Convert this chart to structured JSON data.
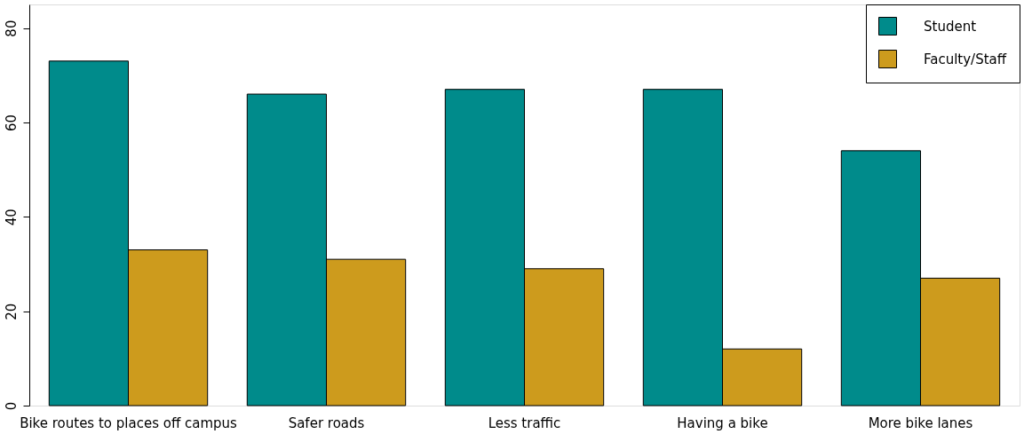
{
  "chart_data": {
    "type": "bar",
    "categories": [
      "Bike routes to places off campus",
      "Safer roads",
      "Less traffic",
      "Having a bike",
      "More bike lanes"
    ],
    "series": [
      {
        "name": "Student",
        "color": "#008b8b",
        "values": [
          73,
          66,
          67,
          67,
          54
        ]
      },
      {
        "name": "Faculty/Staff",
        "color": "#cd9b1d",
        "values": [
          33,
          31,
          29,
          12,
          27
        ]
      }
    ],
    "ylim": [
      0,
      85
    ],
    "yticks": [
      0,
      20,
      40,
      60,
      80
    ],
    "grid": false,
    "legend": "top right"
  }
}
